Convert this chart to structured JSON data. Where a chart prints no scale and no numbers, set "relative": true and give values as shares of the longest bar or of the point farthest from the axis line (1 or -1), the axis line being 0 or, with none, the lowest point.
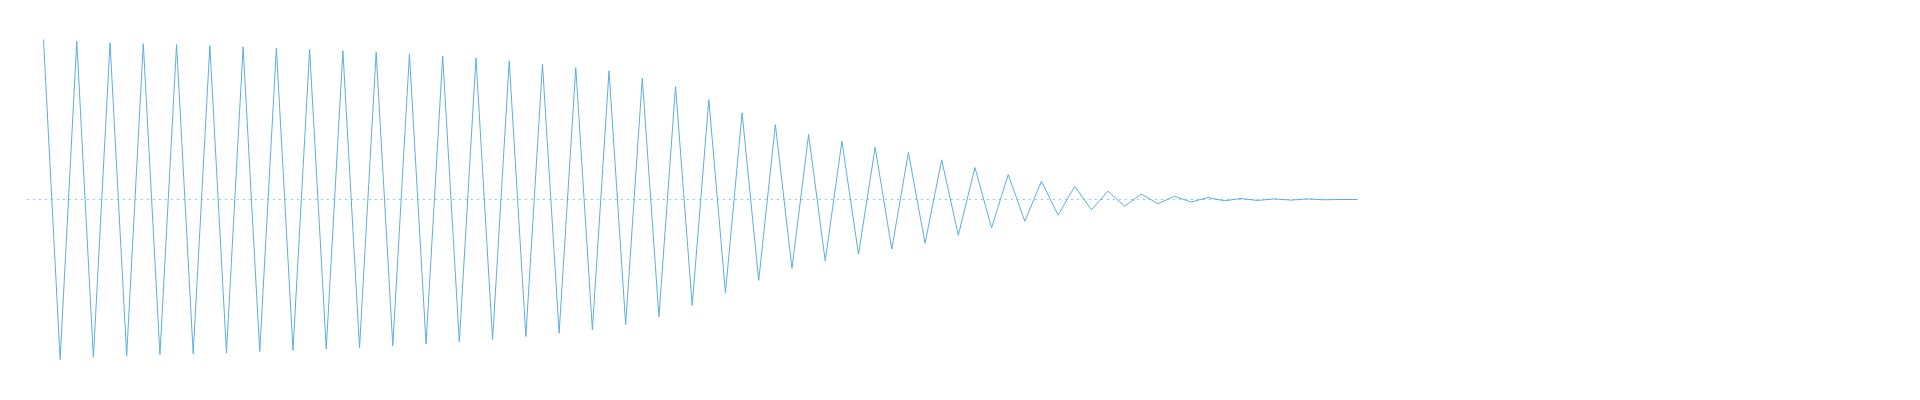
{
  "chart_data": {
    "type": "line",
    "relative": true,
    "ref_lines": [
      {
        "axis": "y",
        "value": 0,
        "color": "#5dade2",
        "line_style": "dotted"
      }
    ],
    "categories": [
      null,
      null,
      null,
      null,
      null,
      null,
      null,
      null,
      null,
      null,
      null,
      null,
      null,
      null,
      null,
      null,
      null,
      null,
      null,
      null,
      null,
      null,
      null,
      null,
      null,
      null,
      null,
      null,
      null,
      null,
      null,
      null,
      null,
      null,
      null,
      null,
      null,
      null,
      null,
      null,
      null,
      null,
      null,
      null,
      null,
      null,
      null,
      null,
      null,
      null,
      null,
      null,
      null,
      null,
      null,
      null,
      null,
      null,
      null,
      null,
      null,
      null,
      null,
      null,
      null,
      null,
      null,
      null,
      null,
      null,
      null,
      null,
      null,
      null,
      null,
      null,
      null,
      null,
      null,
      null
    ],
    "series": [
      {
        "color": "#5dade2",
        "values": [
          1.0,
          -1.0,
          0.99,
          -0.986,
          0.98,
          -0.976,
          0.974,
          -0.97,
          0.968,
          -0.964,
          0.962,
          -0.958,
          0.954,
          -0.95,
          0.946,
          -0.942,
          0.938,
          -0.934,
          0.93,
          -0.926,
          0.92,
          -0.914,
          0.908,
          -0.902,
          0.896,
          -0.89,
          0.884,
          -0.876,
          0.866,
          -0.856,
          0.846,
          -0.836,
          0.824,
          -0.814,
          0.804,
          -0.782,
          0.758,
          -0.732,
          0.706,
          -0.662,
          0.624,
          -0.582,
          0.542,
          -0.506,
          0.468,
          -0.43,
          0.406,
          -0.384,
          0.364,
          -0.342,
          0.326,
          -0.31,
          0.294,
          -0.274,
          0.248,
          -0.224,
          0.2,
          -0.178,
          0.156,
          -0.136,
          0.114,
          -0.098,
          0.082,
          -0.064,
          0.052,
          -0.042,
          0.034,
          -0.026,
          0.02,
          -0.016,
          0.012,
          -0.008,
          0.006,
          -0.006,
          0.004,
          -0.004,
          0.004,
          -0.002,
          0.0,
          0.0
        ]
      }
    ]
  }
}
